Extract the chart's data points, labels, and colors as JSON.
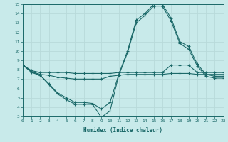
{
  "xlabel": "Humidex (Indice chaleur)",
  "bg_color": "#c8eaea",
  "grid_color": "#b8dada",
  "line_color": "#1a6868",
  "x_values": [
    0,
    1,
    2,
    3,
    4,
    5,
    6,
    7,
    8,
    9,
    10,
    11,
    12,
    13,
    14,
    15,
    16,
    17,
    18,
    19,
    20,
    21,
    22,
    23
  ],
  "line1": [
    8.5,
    7.9,
    7.7,
    7.7,
    7.7,
    7.7,
    7.6,
    7.6,
    7.6,
    7.6,
    7.6,
    7.7,
    7.7,
    7.7,
    7.7,
    7.7,
    7.7,
    8.5,
    8.5,
    8.5,
    7.7,
    7.7,
    7.7,
    7.7
  ],
  "line2": [
    8.5,
    7.8,
    7.5,
    7.4,
    7.2,
    7.1,
    7.0,
    7.0,
    7.0,
    7.0,
    7.3,
    7.4,
    7.5,
    7.5,
    7.5,
    7.5,
    7.5,
    7.6,
    7.6,
    7.6,
    7.5,
    7.5,
    7.5,
    7.5
  ],
  "line3": [
    8.5,
    7.8,
    7.4,
    6.5,
    5.5,
    5.0,
    4.5,
    4.5,
    4.4,
    3.8,
    4.5,
    7.5,
    10.0,
    13.3,
    14.0,
    15.0,
    15.0,
    13.5,
    11.0,
    10.5,
    8.6,
    7.5,
    7.3,
    7.3
  ],
  "line4": [
    8.5,
    7.7,
    7.4,
    6.4,
    5.4,
    4.8,
    4.3,
    4.3,
    4.3,
    2.9,
    3.6,
    7.4,
    9.8,
    13.0,
    13.8,
    14.8,
    14.8,
    13.2,
    10.8,
    10.2,
    8.4,
    7.3,
    7.1,
    7.1
  ],
  "ylim": [
    3,
    15
  ],
  "xlim": [
    0,
    23
  ]
}
